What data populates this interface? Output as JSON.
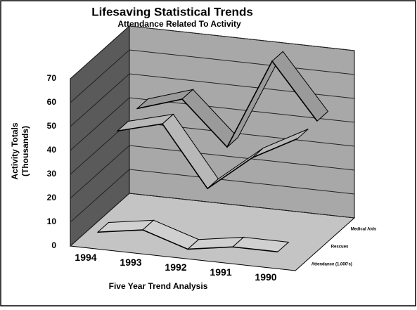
{
  "chart_data": {
    "type": "ribbon3d",
    "title": "Lifesaving Statistical Trends",
    "subtitle": "Attendance Related To Activity",
    "y_label": [
      "Activity Totals",
      "(Thousands)"
    ],
    "x_label": "Five Year Trend Analysis",
    "categories": [
      "1994",
      "1993",
      "1992",
      "1991",
      "1990"
    ],
    "series": [
      {
        "name": "Medical Aids",
        "color": "#9a9a9a",
        "values": [
          42,
          48,
          30,
          68,
          45
        ]
      },
      {
        "name": "Rescues",
        "color": "#b8b8b8",
        "values": [
          40,
          45,
          20,
          35,
          45
        ]
      },
      {
        "name": "Attendance (1,000's)",
        "color": "#d0d0d0",
        "values": [
          5,
          8,
          2,
          5,
          5
        ]
      }
    ],
    "ylim": [
      0,
      70
    ],
    "yticks": [
      0,
      10,
      20,
      30,
      40,
      50,
      60,
      70
    ],
    "grid": true
  }
}
